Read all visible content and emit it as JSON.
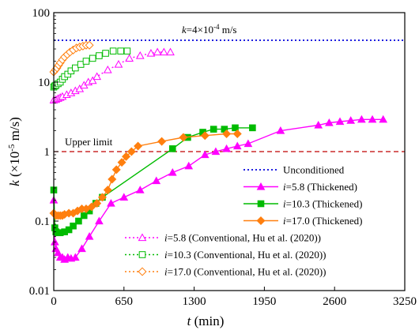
{
  "chart_data": {
    "type": "line",
    "xlabel": {
      "symbol": "t",
      "unit": " (min)"
    },
    "ylabel": {
      "symbol": "k",
      "unit_prefix": " (×10",
      "unit_exp": "-5",
      "unit_suffix": " m/s)"
    },
    "x_ticks": [
      0,
      650,
      1300,
      1950,
      2600,
      3250
    ],
    "y_ticks": [
      "0.01",
      "0.1",
      "1",
      "10",
      "100"
    ],
    "xlim": [
      0,
      3250
    ],
    "ylim": [
      0.01,
      100
    ],
    "y_scale": "log",
    "annotations": {
      "k_line": {
        "pre": "k",
        "mid": "=4×10",
        "exp": "-4",
        "post": " m/s",
        "value": 40,
        "color": "#1f1fe0"
      },
      "upper_limit": {
        "text": "Upper limit",
        "value": 1,
        "color": "#c00000"
      }
    },
    "legend_position": "lower-right",
    "series": [
      {
        "key": "unconditioned",
        "name": "Unconditioned",
        "color": "#1f1fe0",
        "style": "dotted",
        "marker": "none",
        "x": [
          0,
          3250
        ],
        "y": [
          40,
          40
        ]
      },
      {
        "key": "t58",
        "name_i": "i",
        "name_rest": "=5.8  (Thickened)",
        "color": "#ff00ff",
        "style": "solid",
        "marker": "triangle-filled",
        "x": [
          0,
          10,
          20,
          40,
          60,
          80,
          100,
          130,
          160,
          200,
          260,
          330,
          420,
          530,
          650,
          800,
          950,
          1100,
          1250,
          1400,
          1500,
          1600,
          1700,
          1800,
          2100,
          2450,
          2550,
          2650,
          2750,
          2850,
          2950,
          3050
        ],
        "y": [
          0.2,
          0.05,
          0.04,
          0.035,
          0.03,
          0.03,
          0.028,
          0.03,
          0.029,
          0.03,
          0.04,
          0.06,
          0.1,
          0.18,
          0.22,
          0.28,
          0.38,
          0.5,
          0.62,
          0.9,
          1.0,
          1.1,
          1.2,
          1.3,
          2.0,
          2.4,
          2.6,
          2.7,
          2.8,
          2.9,
          2.9,
          2.9
        ]
      },
      {
        "key": "t103",
        "name_i": "i",
        "name_rest": "=10.3 (Thickened)",
        "color": "#00bb00",
        "style": "solid",
        "marker": "square-filled",
        "x": [
          0,
          10,
          20,
          40,
          60,
          100,
          140,
          180,
          230,
          280,
          330,
          390,
          450,
          1100,
          1240,
          1380,
          1480,
          1580,
          1680,
          1840
        ],
        "y": [
          0.28,
          0.08,
          0.07,
          0.068,
          0.068,
          0.07,
          0.075,
          0.085,
          0.1,
          0.12,
          0.14,
          0.18,
          0.22,
          1.1,
          1.6,
          1.9,
          2.1,
          2.1,
          2.2,
          2.2
        ]
      },
      {
        "key": "t170",
        "name_i": "i",
        "name_rest": "=17.0 (Thickened)",
        "color": "#ff7f0e",
        "style": "solid",
        "marker": "diamond-filled",
        "x": [
          0,
          20,
          40,
          60,
          80,
          100,
          140,
          180,
          220,
          260,
          300,
          350,
          400,
          450,
          500,
          540,
          580,
          630,
          670,
          720,
          780,
          1000,
          1200,
          1400,
          1600,
          1700
        ],
        "y": [
          0.13,
          0.12,
          0.12,
          0.12,
          0.12,
          0.125,
          0.13,
          0.13,
          0.14,
          0.15,
          0.15,
          0.16,
          0.18,
          0.22,
          0.28,
          0.4,
          0.55,
          0.7,
          0.85,
          1.0,
          1.2,
          1.4,
          1.6,
          1.7,
          1.8,
          1.8
        ]
      },
      {
        "key": "c58",
        "name_i": "i",
        "name_rest": "=5.8   (Conventional, Hu et al. (2020))",
        "color": "#ff00ff",
        "style": "dotted",
        "marker": "triangle-open",
        "x": [
          0,
          20,
          40,
          60,
          80,
          120,
          160,
          200,
          240,
          280,
          320,
          360,
          400,
          500,
          600,
          700,
          800,
          900,
          960,
          1020,
          1080
        ],
        "y": [
          5.5,
          5.6,
          5.8,
          6.0,
          6.2,
          6.6,
          7.0,
          7.5,
          8.0,
          9.0,
          10.0,
          10.5,
          12.0,
          15.0,
          18.0,
          22.0,
          24.0,
          26.0,
          27.0,
          27.0,
          27.0
        ]
      },
      {
        "key": "c103",
        "name_i": "i",
        "name_rest": "=10.3 (Conventional, Hu et al. (2020))",
        "color": "#00bb00",
        "style": "dotted",
        "marker": "square-open",
        "x": [
          0,
          10,
          20,
          40,
          60,
          80,
          100,
          130,
          160,
          200,
          250,
          300,
          360,
          420,
          480,
          550,
          620,
          680
        ],
        "y": [
          8.5,
          8.8,
          9.0,
          9.5,
          10.0,
          11.0,
          12.0,
          13.0,
          14.5,
          16.0,
          18.0,
          20.0,
          22.0,
          24.0,
          26.0,
          28.0,
          28.0,
          28.0
        ]
      },
      {
        "key": "c170",
        "name_i": "i",
        "name_rest": "=17.0 (Conventional, Hu et al. (2020))",
        "color": "#ff7f0e",
        "style": "dotted",
        "marker": "diamond-open",
        "x": [
          0,
          15,
          30,
          45,
          60,
          80,
          100,
          125,
          150,
          180,
          210,
          240,
          270,
          300,
          330
        ],
        "y": [
          14.0,
          15.0,
          16.0,
          17.5,
          19.0,
          21.0,
          23.0,
          25.0,
          27.0,
          29.0,
          31.0,
          32.0,
          33.0,
          34.0,
          34.0
        ]
      }
    ]
  }
}
